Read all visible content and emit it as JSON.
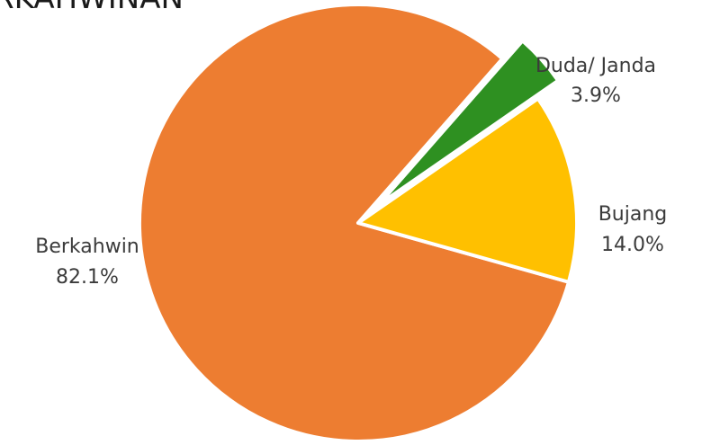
{
  "chart_data": {
    "type": "pie",
    "title": "RKAHWINAN",
    "slices": [
      {
        "label": "Berkahwin",
        "value": 82.1,
        "percent_label": "82.1%",
        "color": "#ED7D31"
      },
      {
        "label": "Duda/ Janda",
        "value": 3.9,
        "percent_label": "3.9%",
        "color": "#2E9021",
        "exploded": true
      },
      {
        "label": "Bujang",
        "value": 14.0,
        "percent_label": "14.0%",
        "color": "#FFC000"
      }
    ]
  }
}
